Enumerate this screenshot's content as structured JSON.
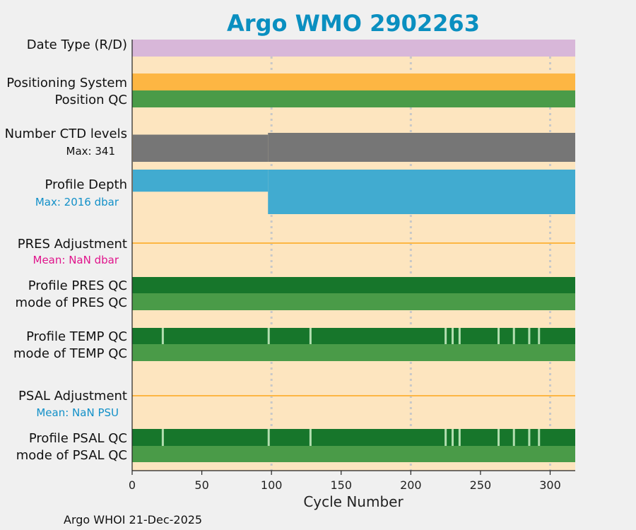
{
  "chart_data": {
    "type": "bar",
    "title": "Argo WMO 2902263",
    "xlabel": "Cycle Number",
    "xlim": [
      0,
      318
    ],
    "xticks": [
      0,
      50,
      100,
      150,
      200,
      250,
      300
    ],
    "vgrid_at": [
      100,
      200,
      300
    ],
    "footer": "Argo WHOI 21-Dec-2025",
    "colors": {
      "title": "#0a8fc0",
      "panel_bg": "#fde5bf",
      "date_type": "#d8b7d9",
      "positioning": "#fdb643",
      "qc_good_light": "#4a9b48",
      "qc_good_dark": "#17762b",
      "qc_gap": "#b3deb0",
      "ctd_levels": "#767676",
      "profile_depth": "#41abd0",
      "adjustment_line": "#fdb643",
      "pres_mean_text": "#e0158c",
      "psal_mean_text": "#1290c8",
      "depth_max_text": "#1290c8"
    },
    "rows": {
      "date_type": {
        "label": "Date Type (R/D)"
      },
      "positioning": {
        "label": "Positioning System"
      },
      "position_qc": {
        "label": "Position QC"
      },
      "ctd_levels": {
        "label": "Number CTD levels",
        "max_text": "Max: 341",
        "max": 341,
        "segments": [
          {
            "from": 0.5,
            "to": 97.5,
            "levels": 320
          },
          {
            "from": 97.5,
            "to": 318,
            "levels": 341
          }
        ]
      },
      "profile_depth": {
        "label": "Profile Depth",
        "max_text": "Max: 2016 dbar",
        "max_dbar": 2016,
        "segments": [
          {
            "from": 0.5,
            "to": 97.5,
            "depth": 1000
          },
          {
            "from": 97.5,
            "to": 318,
            "depth": 2016
          }
        ]
      },
      "pres_adjustment": {
        "label": "PRES Adjustment",
        "mean_text": "Mean:  NaN dbar"
      },
      "profile_pres_qc": {
        "label": "Profile PRES QC"
      },
      "mode_pres_qc": {
        "label": "mode of PRES QC"
      },
      "profile_temp_qc": {
        "label": "Profile TEMP QC",
        "gap_cycles": [
          22,
          98,
          128,
          225,
          230,
          235,
          263,
          274,
          285,
          292
        ]
      },
      "mode_temp_qc": {
        "label": "mode of TEMP QC"
      },
      "psal_adjustment": {
        "label": "PSAL Adjustment",
        "mean_text": "Mean:  NaN PSU"
      },
      "profile_psal_qc": {
        "label": "Profile PSAL QC",
        "gap_cycles": [
          22,
          98,
          128,
          225,
          230,
          235,
          263,
          274,
          285,
          292
        ]
      },
      "mode_psal_qc": {
        "label": "mode of PSAL QC"
      }
    }
  }
}
